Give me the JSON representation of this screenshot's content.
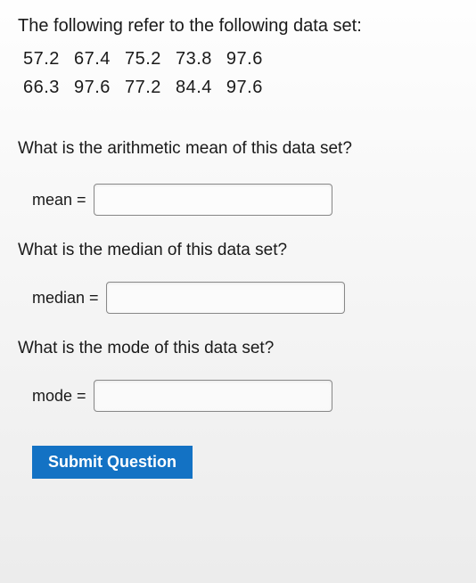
{
  "intro": "The following refer to the following data set:",
  "data_rows": [
    "57.2 67.4 75.2 73.8 97.6",
    "66.3 97.6 77.2 84.4 97.6"
  ],
  "questions": {
    "mean": {
      "prompt": "What is the arithmetic mean of this data set?",
      "label": "mean =",
      "value": ""
    },
    "median": {
      "prompt": "What is the median of this data set?",
      "label": "median =",
      "value": ""
    },
    "mode": {
      "prompt": "What is the mode of this data set?",
      "label": "mode =",
      "value": ""
    }
  },
  "submit_label": "Submit Question",
  "style": {
    "background_gradient": [
      "#fefefe",
      "#f5f5f5",
      "#ececec"
    ],
    "text_color": "#1a1a1a",
    "input_border": "#888888",
    "input_bg": "rgba(255,255,255,0.6)",
    "button_bg": "#1372c4",
    "button_text": "#ffffff",
    "font_family": "Segoe UI, Tahoma, Verdana, sans-serif",
    "intro_fontsize": 20,
    "question_fontsize": 19,
    "label_fontsize": 18,
    "input_width": 268,
    "input_height": 36
  }
}
